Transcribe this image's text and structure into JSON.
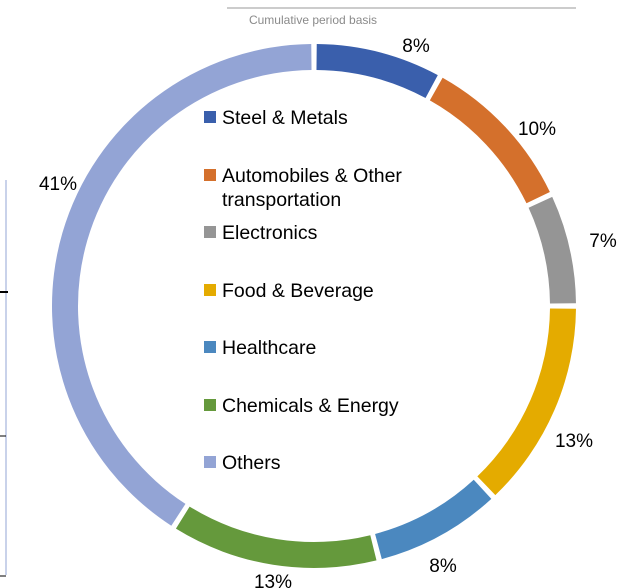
{
  "chart_data": {
    "type": "pie",
    "variant": "donut",
    "subtitle": "Cumulative period basis",
    "legend_placement": "inside-center",
    "slices": [
      {
        "name": "Steel & Metals",
        "name_lines": [
          "Steel & Metals"
        ],
        "value": 8,
        "label": "8%",
        "color": "#3a5fac"
      },
      {
        "name": "Automobiles & Other transportation",
        "name_lines": [
          "Automobiles & Other",
          "transportation"
        ],
        "value": 10,
        "label": "10%",
        "color": "#d4702c"
      },
      {
        "name": "Electronics",
        "name_lines": [
          "Electronics"
        ],
        "value": 7,
        "label": "7%",
        "color": "#959595"
      },
      {
        "name": "Food & Beverage",
        "name_lines": [
          "Food & Beverage"
        ],
        "value": 13,
        "label": "13%",
        "color": "#e4ab00"
      },
      {
        "name": "Healthcare",
        "name_lines": [
          "Healthcare"
        ],
        "value": 8,
        "label": "8%",
        "color": "#4b88bf"
      },
      {
        "name": "Chemicals & Energy",
        "name_lines": [
          "Chemicals & Energy"
        ],
        "value": 13,
        "label": "13%",
        "color": "#65993c"
      },
      {
        "name": "Others",
        "name_lines": [
          "Others"
        ],
        "value": 41,
        "label": "41%",
        "color": "#93a4d5"
      }
    ]
  }
}
